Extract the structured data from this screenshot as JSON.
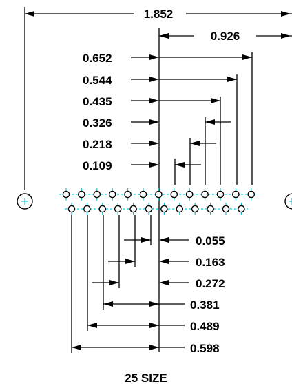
{
  "title": "25 SIZE",
  "overall": {
    "total": "1.852",
    "half": "0.926"
  },
  "top_row_dims": [
    "0.652",
    "0.544",
    "0.435",
    "0.326",
    "0.218",
    "0.109"
  ],
  "bottom_row_dims": [
    "0.055",
    "0.163",
    "0.272",
    "0.381",
    "0.489",
    "0.598"
  ],
  "colors": {
    "line": "#000000",
    "centerline": "#19c7d8",
    "background": "#ffffff"
  }
}
